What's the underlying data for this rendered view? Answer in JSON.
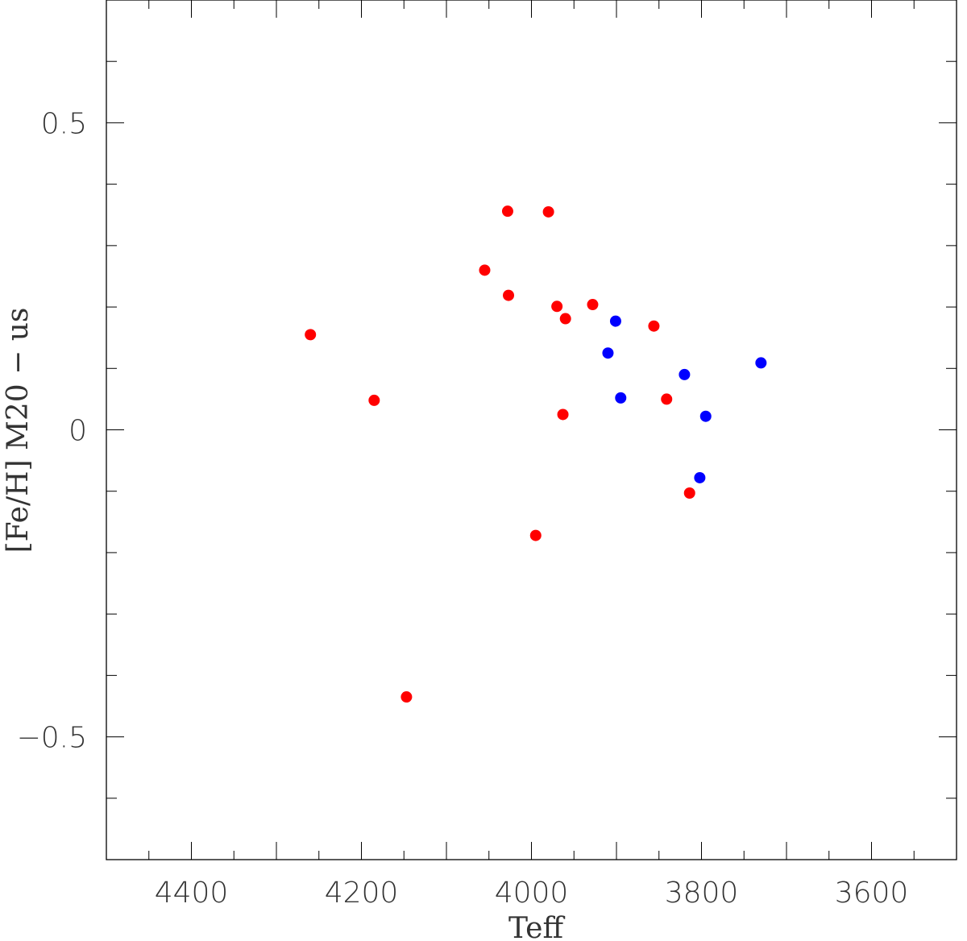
{
  "chart_data": {
    "type": "scatter",
    "title": "",
    "xlabel": "Teff",
    "ylabel": "[Fe/H] M20 − us",
    "xlim": [
      4500,
      3500
    ],
    "x_reversed": true,
    "ylim": [
      -0.7,
      0.7
    ],
    "x_ticks": [
      4400,
      4200,
      4000,
      3800,
      3600
    ],
    "x_tick_labels": [
      "4400",
      "4200",
      "4000",
      "3800",
      "3600"
    ],
    "y_ticks": [
      -0.5,
      0,
      0.5
    ],
    "y_tick_labels": [
      "−0.5",
      "0",
      "0.5"
    ],
    "grid": false,
    "legend": null,
    "series": [
      {
        "color": "#ff0000",
        "points": [
          {
            "x": 4260,
            "y": 0.155
          },
          {
            "x": 4185,
            "y": 0.048
          },
          {
            "x": 4147,
            "y": -0.435
          },
          {
            "x": 4055,
            "y": 0.26
          },
          {
            "x": 4028,
            "y": 0.356
          },
          {
            "x": 4027,
            "y": 0.219
          },
          {
            "x": 3980,
            "y": 0.355
          },
          {
            "x": 3995,
            "y": -0.172
          },
          {
            "x": 3970,
            "y": 0.201
          },
          {
            "x": 3960,
            "y": 0.181
          },
          {
            "x": 3963,
            "y": 0.025
          },
          {
            "x": 3928,
            "y": 0.204
          },
          {
            "x": 3856,
            "y": 0.169
          },
          {
            "x": 3841,
            "y": 0.05
          },
          {
            "x": 3814,
            "y": -0.103
          }
        ]
      },
      {
        "color": "#0000ff",
        "points": [
          {
            "x": 3901,
            "y": 0.177
          },
          {
            "x": 3910,
            "y": 0.125
          },
          {
            "x": 3895,
            "y": 0.052
          },
          {
            "x": 3820,
            "y": 0.09
          },
          {
            "x": 3795,
            "y": 0.022
          },
          {
            "x": 3802,
            "y": -0.078
          },
          {
            "x": 3730,
            "y": 0.109
          }
        ]
      }
    ]
  }
}
